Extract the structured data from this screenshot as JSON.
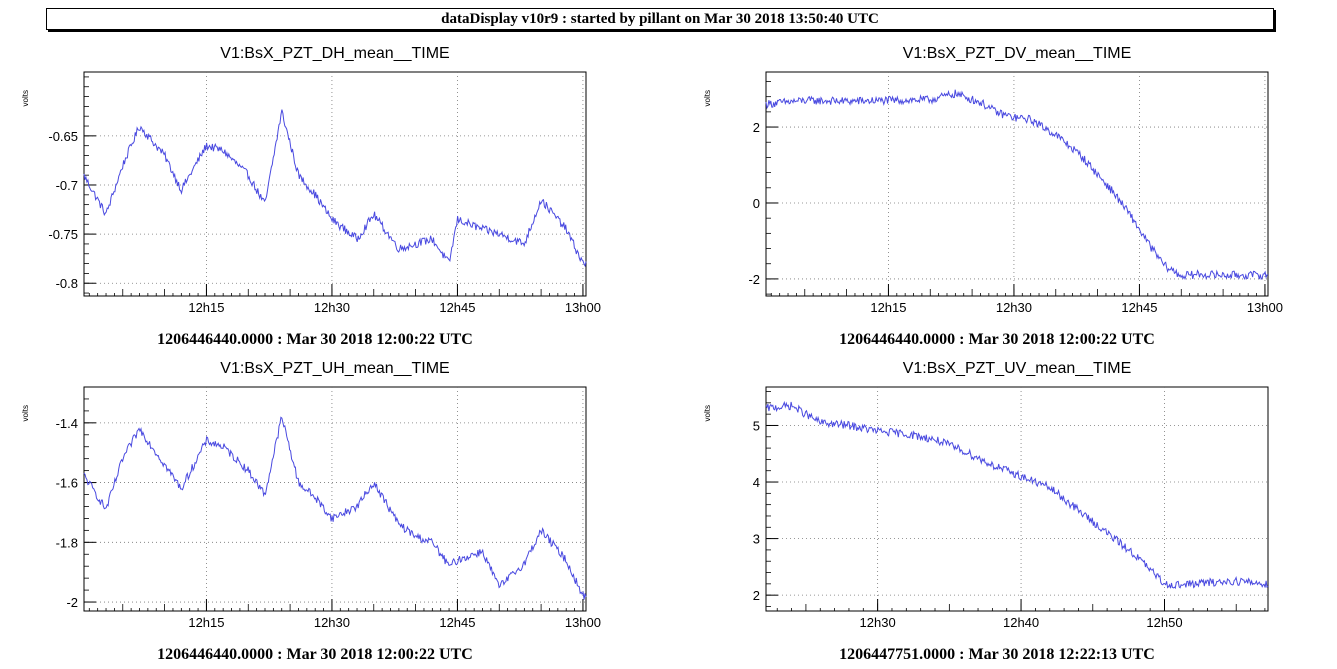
{
  "header": {
    "title": "dataDisplay v10r9 : started by pillant on Mar 30 2018 13:50:40 UTC"
  },
  "colors": {
    "trace": "#4a4ae0",
    "grid": "#777777",
    "axis": "#000000"
  },
  "panels": [
    {
      "title": "V1:BsX_PZT_DH_mean__TIME",
      "ylabel": "volts",
      "footer": "1206446440.0000 : Mar 30 2018 12:00:22 UTC"
    },
    {
      "title": "V1:BsX_PZT_DV_mean__TIME",
      "ylabel": "volts",
      "footer": "1206446440.0000 : Mar 30 2018 12:00:22 UTC"
    },
    {
      "title": "V1:BsX_PZT_UH_mean__TIME",
      "ylabel": "volts",
      "footer": "1206446440.0000 : Mar 30 2018 12:00:22 UTC"
    },
    {
      "title": "V1:BsX_PZT_UV_mean__TIME",
      "ylabel": "volts",
      "footer": "1206447751.0000 : Mar 30 2018 12:22:13 UTC"
    }
  ],
  "chart_data": [
    {
      "type": "line",
      "title": "V1:BsX_PZT_DH_mean__TIME",
      "ylabel": "volts",
      "xlim": [
        "12:00:22",
        "13:00:22"
      ],
      "ylim": [
        -0.813,
        -0.585
      ],
      "xticks": [
        "12h15",
        "12h30",
        "12h45",
        "13h00"
      ],
      "yticks": [
        -0.65,
        -0.7,
        -0.75,
        -0.8
      ],
      "grid": true,
      "series": [
        {
          "x": [
            "12:00",
            "12:03",
            "12:05",
            "12:07",
            "12:10",
            "12:12",
            "12:15",
            "12:17",
            "12:20",
            "12:22",
            "12:24",
            "12:26",
            "12:28",
            "12:30",
            "12:33",
            "12:35",
            "12:38",
            "12:40",
            "12:42",
            "12:44",
            "12:45",
            "12:48",
            "12:50",
            "12:53",
            "12:55",
            "12:58",
            "13:00"
          ],
          "y": [
            -0.685,
            -0.73,
            -0.68,
            -0.64,
            -0.67,
            -0.705,
            -0.66,
            -0.665,
            -0.69,
            -0.72,
            -0.625,
            -0.69,
            -0.71,
            -0.735,
            -0.755,
            -0.73,
            -0.765,
            -0.76,
            -0.755,
            -0.78,
            -0.735,
            -0.745,
            -0.75,
            -0.76,
            -0.715,
            -0.745,
            -0.78
          ]
        }
      ]
    },
    {
      "type": "line",
      "title": "V1:BsX_PZT_DV_mean__TIME",
      "ylabel": "volts",
      "xlim": [
        "12:00:22",
        "13:00:22"
      ],
      "ylim": [
        -2.45,
        3.45
      ],
      "xticks": [
        "12h15",
        "12h30",
        "12h45",
        "13h00"
      ],
      "yticks": [
        2,
        0,
        -2
      ],
      "grid": true,
      "series": [
        {
          "x": [
            "12:00",
            "12:05",
            "12:10",
            "12:15",
            "12:20",
            "12:23",
            "12:26",
            "12:28",
            "12:30",
            "12:32",
            "12:35",
            "12:38",
            "12:40",
            "12:42",
            "12:44",
            "12:46",
            "12:48",
            "12:50",
            "12:52",
            "12:55",
            "13:00"
          ],
          "y": [
            2.6,
            2.7,
            2.68,
            2.7,
            2.72,
            2.88,
            2.65,
            2.38,
            2.25,
            2.2,
            1.8,
            1.25,
            0.75,
            0.25,
            -0.35,
            -1.05,
            -1.65,
            -1.92,
            -1.88,
            -1.9,
            -1.9
          ]
        }
      ]
    },
    {
      "type": "line",
      "title": "V1:BsX_PZT_UH_mean__TIME",
      "ylabel": "volts",
      "xlim": [
        "12:00:22",
        "13:00:22"
      ],
      "ylim": [
        -2.03,
        -1.28
      ],
      "xticks": [
        "12h15",
        "12h30",
        "12h45",
        "13h00"
      ],
      "yticks": [
        -1.4,
        -1.6,
        -1.8,
        -2
      ],
      "grid": true,
      "series": [
        {
          "x": [
            "12:00",
            "12:03",
            "12:05",
            "12:07",
            "12:10",
            "12:12",
            "12:15",
            "12:17",
            "12:20",
            "12:22",
            "12:24",
            "12:26",
            "12:28",
            "12:30",
            "12:33",
            "12:35",
            "12:38",
            "12:40",
            "12:42",
            "12:44",
            "12:45",
            "12:48",
            "12:50",
            "12:53",
            "12:55",
            "12:58",
            "13:00"
          ],
          "y": [
            -1.56,
            -1.69,
            -1.52,
            -1.42,
            -1.54,
            -1.62,
            -1.46,
            -1.48,
            -1.56,
            -1.64,
            -1.38,
            -1.6,
            -1.65,
            -1.72,
            -1.68,
            -1.6,
            -1.74,
            -1.78,
            -1.8,
            -1.88,
            -1.86,
            -1.83,
            -1.95,
            -1.87,
            -1.76,
            -1.86,
            -1.98
          ]
        }
      ]
    },
    {
      "type": "line",
      "title": "V1:BsX_PZT_UV_mean__TIME",
      "ylabel": "volts",
      "xlim": [
        "12:22:13",
        "12:57:13"
      ],
      "ylim": [
        1.72,
        5.68
      ],
      "xticks": [
        "12h30",
        "12h40",
        "12h50"
      ],
      "yticks": [
        5,
        4,
        3,
        2
      ],
      "grid": true,
      "series": [
        {
          "x": [
            "12:22",
            "12:24",
            "12:26",
            "12:28",
            "12:30",
            "12:32",
            "12:34",
            "12:36",
            "12:38",
            "12:40",
            "12:42",
            "12:44",
            "12:46",
            "12:48",
            "12:50",
            "12:51",
            "12:53",
            "12:55",
            "12:57"
          ],
          "y": [
            5.3,
            5.35,
            5.05,
            5.0,
            4.9,
            4.85,
            4.75,
            4.55,
            4.3,
            4.1,
            3.9,
            3.5,
            3.1,
            2.7,
            2.2,
            2.18,
            2.22,
            2.25,
            2.2
          ]
        }
      ]
    }
  ]
}
